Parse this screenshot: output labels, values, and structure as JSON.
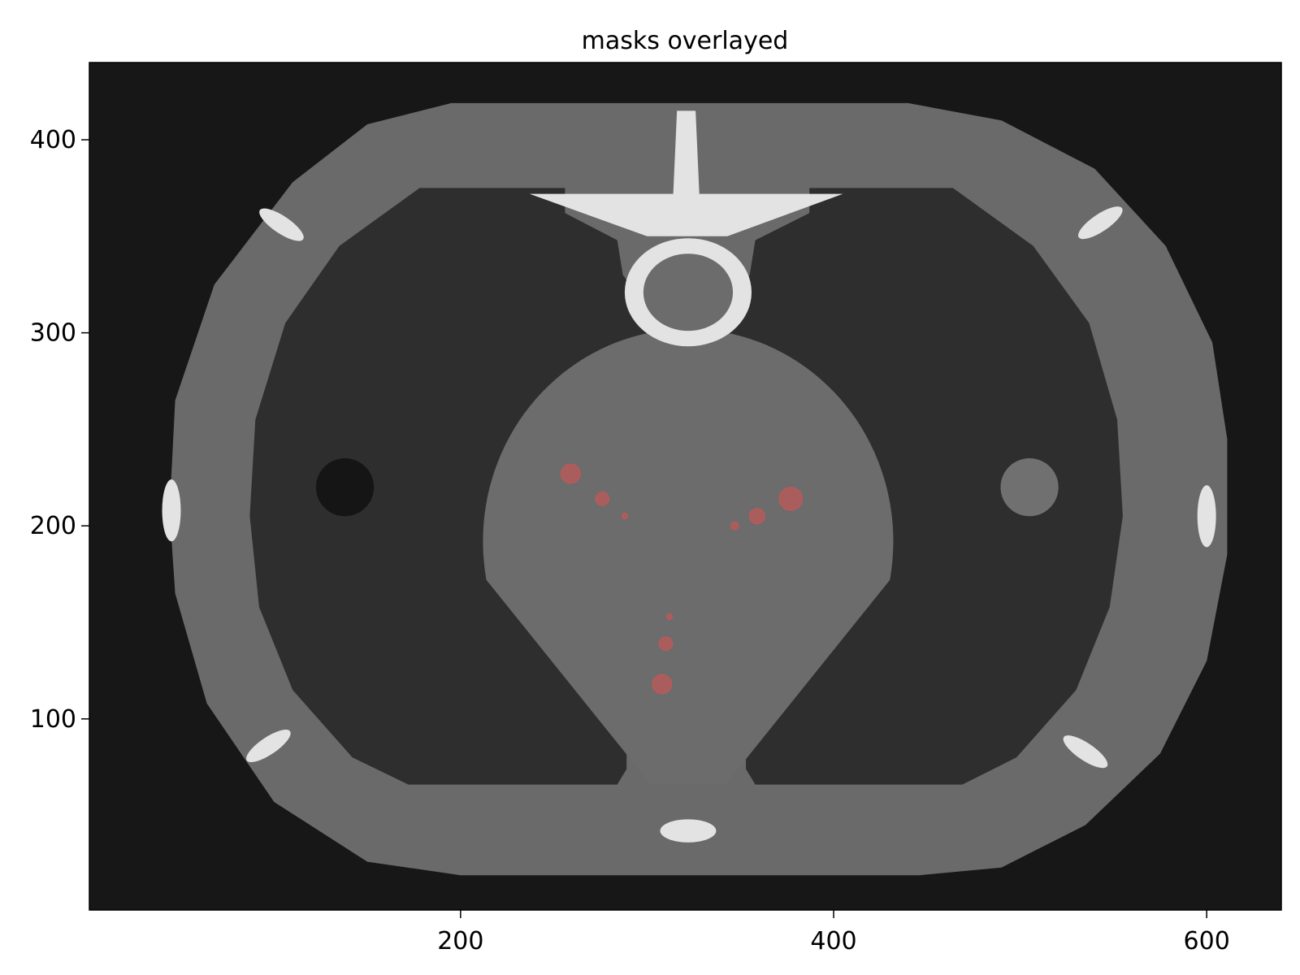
{
  "chart_data": {
    "type": "heatmap",
    "title": "masks overlayed",
    "xlabel": "",
    "ylabel": "",
    "xlim": [
      1,
      640
    ],
    "ylim": [
      1,
      440
    ],
    "x_ticks": [
      "200",
      "400",
      "600"
    ],
    "y_ticks": [
      "100",
      "200",
      "300",
      "400"
    ],
    "x_tick_values": [
      200,
      400,
      600
    ],
    "y_tick_values": [
      100,
      200,
      300,
      400
    ],
    "grid": false,
    "legend": "none",
    "colormap": "grayscale",
    "overlay_color": "#ff4a4a",
    "colors": {
      "background": "#171717",
      "body_outer": "#6a6a6a",
      "lung": "#2e2e2e",
      "heart": "#6c6c6c",
      "bone": "#e3e3e3",
      "dark_insert": "#151515",
      "light_insert": "#707070"
    },
    "mask_points": [
      {
        "x": 259,
        "y": 227,
        "r": 5
      },
      {
        "x": 276,
        "y": 214,
        "r": 3.5
      },
      {
        "x": 288,
        "y": 205,
        "r": 1.5
      },
      {
        "x": 377,
        "y": 214,
        "r": 6
      },
      {
        "x": 359,
        "y": 205,
        "r": 4
      },
      {
        "x": 347,
        "y": 200,
        "r": 2
      },
      {
        "x": 312,
        "y": 153,
        "r": 1.5
      },
      {
        "x": 310,
        "y": 139,
        "r": 3.5
      },
      {
        "x": 308,
        "y": 118,
        "r": 5
      }
    ]
  }
}
